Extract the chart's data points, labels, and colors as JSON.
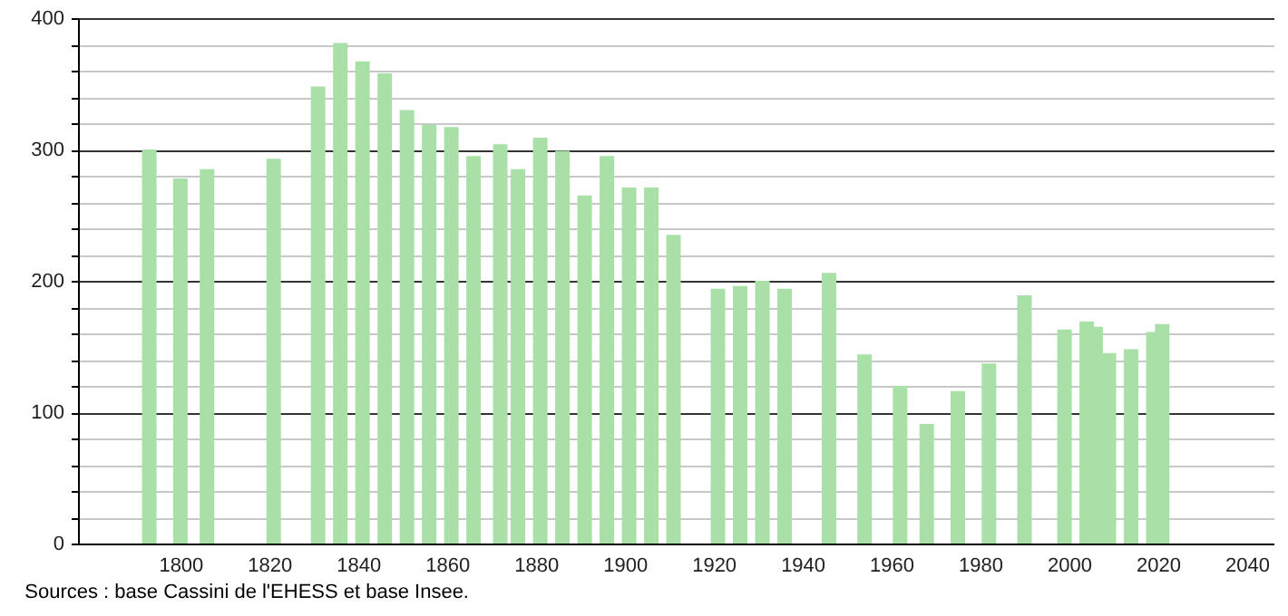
{
  "chart_data": {
    "type": "bar",
    "x": [
      1793,
      1800,
      1806,
      1821,
      1831,
      1836,
      1841,
      1846,
      1851,
      1856,
      1861,
      1866,
      1872,
      1876,
      1881,
      1886,
      1891,
      1896,
      1901,
      1906,
      1911,
      1921,
      1926,
      1931,
      1936,
      1946,
      1954,
      1962,
      1968,
      1975,
      1982,
      1990,
      1999,
      2004,
      2006,
      2009,
      2014,
      2019,
      2021
    ],
    "values": [
      300,
      278,
      285,
      293,
      348,
      381,
      367,
      358,
      330,
      319,
      317,
      295,
      304,
      285,
      309,
      299,
      265,
      295,
      271,
      271,
      235,
      194,
      196,
      200,
      194,
      206,
      144,
      120,
      91,
      116,
      137,
      189,
      163,
      169,
      165,
      145,
      148,
      161,
      167
    ],
    "color": "#a8e0a8",
    "xlim": [
      1779,
      2044
    ],
    "xticks": [
      1800,
      1820,
      1840,
      1860,
      1880,
      1900,
      1920,
      1940,
      1960,
      1980,
      2000,
      2020,
      2040
    ],
    "ylim": [
      0,
      400
    ],
    "yticks": [
      0,
      {
        "value": 20,
        "label": null
      },
      {
        "value": 40,
        "label": null
      },
      {
        "value": 60,
        "label": null
      },
      {
        "value": 80,
        "label": null
      },
      100,
      {
        "value": 120,
        "label": null
      },
      {
        "value": 140,
        "label": null
      },
      {
        "value": 160,
        "label": null
      },
      {
        "value": 180,
        "label": null
      },
      200,
      {
        "value": 220,
        "label": null
      },
      {
        "value": 240,
        "label": null
      },
      {
        "value": 260,
        "label": null
      },
      {
        "value": 280,
        "label": null
      },
      300,
      {
        "value": 320,
        "label": null
      },
      {
        "value": 340,
        "label": null
      },
      {
        "value": 360,
        "label": null
      },
      {
        "value": 380,
        "label": null
      },
      400
    ],
    "grid": "y",
    "annotations": [
      "Sources : base Cassini de l'EHESS et base Insee."
    ]
  }
}
